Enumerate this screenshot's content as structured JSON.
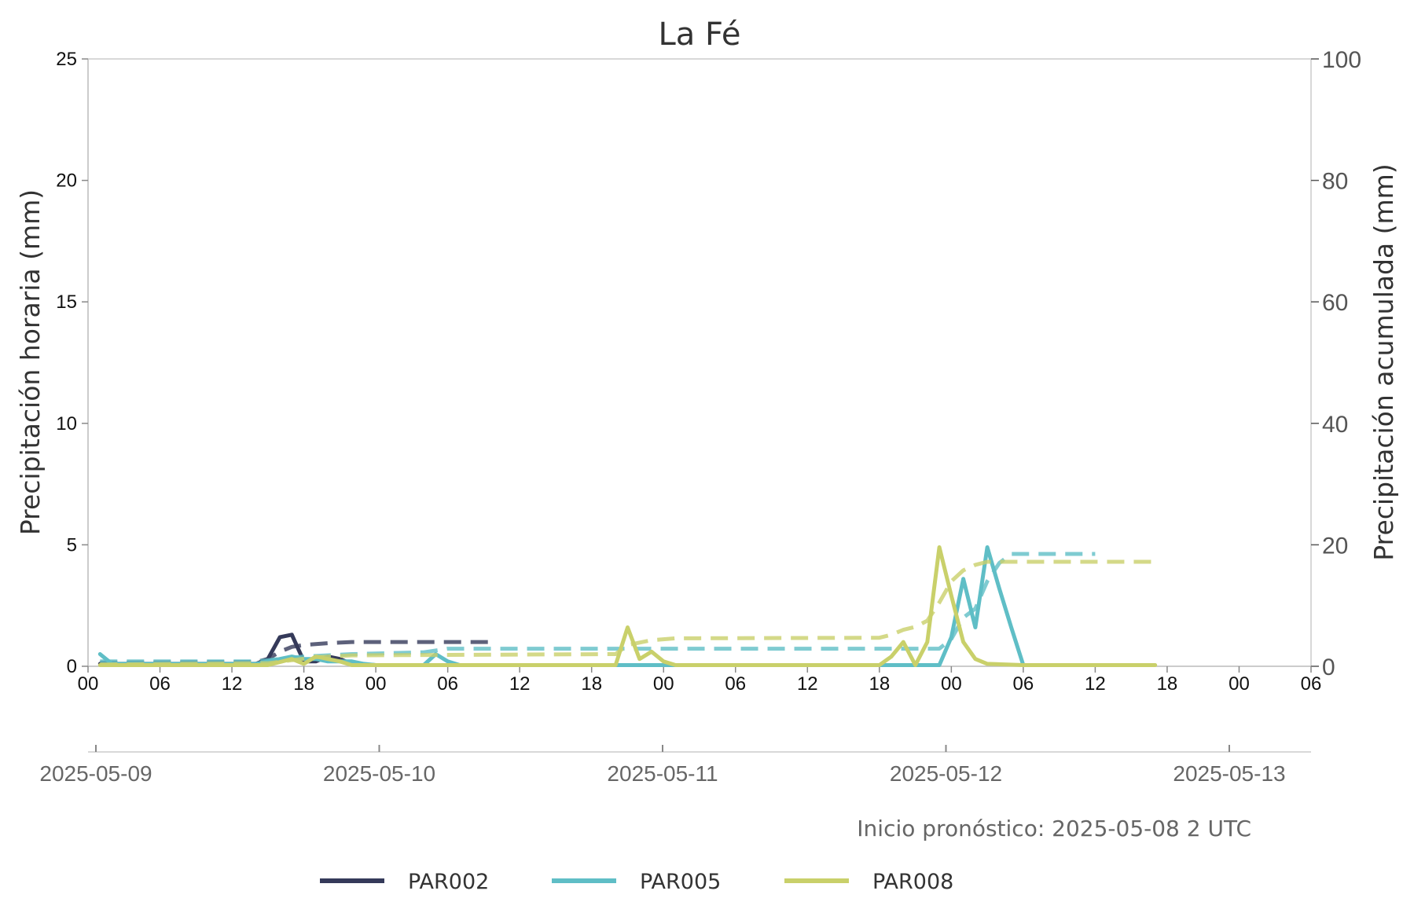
{
  "chart_data": {
    "type": "line",
    "title": "La Fé",
    "ylabel_left": "Precipitación horaria (mm)",
    "ylabel_right": "Precipitación acumulada (mm)",
    "ylim_left": [
      0,
      25
    ],
    "ylim_right": [
      0,
      100
    ],
    "yticks_left": [
      "0",
      "5",
      "10",
      "15",
      "20",
      "25"
    ],
    "yticks_right": [
      "0",
      "20",
      "40",
      "60",
      "80",
      "100"
    ],
    "xlim_hours": [
      0,
      102
    ],
    "hour_ticks": [
      {
        "h": 0,
        "label": "00"
      },
      {
        "h": 6,
        "label": "06"
      },
      {
        "h": 12,
        "label": "12"
      },
      {
        "h": 18,
        "label": "18"
      },
      {
        "h": 24,
        "label": "00"
      },
      {
        "h": 30,
        "label": "06"
      },
      {
        "h": 36,
        "label": "12"
      },
      {
        "h": 42,
        "label": "18"
      },
      {
        "h": 48,
        "label": "00"
      },
      {
        "h": 54,
        "label": "06"
      },
      {
        "h": 60,
        "label": "12"
      },
      {
        "h": 66,
        "label": "18"
      },
      {
        "h": 72,
        "label": "00"
      },
      {
        "h": 78,
        "label": "06"
      },
      {
        "h": 84,
        "label": "12"
      },
      {
        "h": 90,
        "label": "18"
      },
      {
        "h": 96,
        "label": "00"
      },
      {
        "h": 102,
        "label": "06"
      }
    ],
    "date_ticks": [
      "2025-05-09",
      "2025-05-10",
      "2025-05-11",
      "2025-05-12",
      "2025-05-13"
    ],
    "note": "Inicio pronóstico: 2025-05-08 2 UTC",
    "legend_position": "bottom",
    "grid": false,
    "series": [
      {
        "name": "PAR002",
        "color": "#353a5a",
        "hourly": [
          [
            1,
            0.1
          ],
          [
            14,
            0.1
          ],
          [
            15,
            0.3
          ],
          [
            16,
            1.2
          ],
          [
            17,
            1.3
          ],
          [
            18,
            0.2
          ],
          [
            19,
            0.2
          ],
          [
            20,
            0.4
          ],
          [
            21,
            0.3
          ],
          [
            22,
            0.1
          ],
          [
            24,
            0.05
          ],
          [
            28,
            0.05
          ]
        ],
        "cumulative": [
          [
            1,
            0.6
          ],
          [
            14,
            0.7
          ],
          [
            15,
            1.2
          ],
          [
            16,
            2.4
          ],
          [
            17,
            3.2
          ],
          [
            18,
            3.5
          ],
          [
            20,
            3.8
          ],
          [
            22,
            4.0
          ],
          [
            34,
            4.0
          ]
        ]
      },
      {
        "name": "PAR005",
        "color": "#5fbec6",
        "hourly": [
          [
            1,
            0.5
          ],
          [
            2,
            0.1
          ],
          [
            14,
            0.1
          ],
          [
            16,
            0.3
          ],
          [
            17,
            0.4
          ],
          [
            18,
            0.3
          ],
          [
            19,
            0.3
          ],
          [
            20,
            0.2
          ],
          [
            22,
            0.2
          ],
          [
            23,
            0.1
          ],
          [
            24,
            0.05
          ],
          [
            28,
            0.05
          ],
          [
            29,
            0.5
          ],
          [
            30,
            0.2
          ],
          [
            31,
            0.05
          ],
          [
            64,
            0.05
          ],
          [
            70,
            0.05
          ],
          [
            71,
            0.05
          ],
          [
            72,
            1.2
          ],
          [
            73,
            3.6
          ],
          [
            74,
            1.6
          ],
          [
            75,
            4.9
          ],
          [
            76,
            3.2
          ],
          [
            77,
            1.6
          ],
          [
            78,
            0.05
          ],
          [
            84,
            0.05
          ]
        ],
        "cumulative": [
          [
            1,
            0.8
          ],
          [
            14,
            0.8
          ],
          [
            16,
            1.2
          ],
          [
            18,
            1.6
          ],
          [
            22,
            2.0
          ],
          [
            28,
            2.3
          ],
          [
            30,
            2.9
          ],
          [
            48,
            2.9
          ],
          [
            71,
            2.9
          ],
          [
            72,
            4.5
          ],
          [
            73,
            8.0
          ],
          [
            74,
            9.5
          ],
          [
            75,
            14.0
          ],
          [
            76,
            17.0
          ],
          [
            77,
            18.5
          ],
          [
            84,
            18.5
          ]
        ]
      },
      {
        "name": "PAR008",
        "color": "#c9d06a",
        "hourly": [
          [
            1,
            0.05
          ],
          [
            15,
            0.05
          ],
          [
            17,
            0.3
          ],
          [
            18,
            0.1
          ],
          [
            19,
            0.4
          ],
          [
            20,
            0.3
          ],
          [
            21,
            0.2
          ],
          [
            22,
            0.05
          ],
          [
            44,
            0.05
          ],
          [
            45,
            1.6
          ],
          [
            46,
            0.3
          ],
          [
            47,
            0.6
          ],
          [
            48,
            0.2
          ],
          [
            49,
            0.05
          ],
          [
            66,
            0.05
          ],
          [
            67,
            0.4
          ],
          [
            68,
            1.0
          ],
          [
            69,
            0.05
          ],
          [
            70,
            1.0
          ],
          [
            71,
            4.9
          ],
          [
            72,
            2.9
          ],
          [
            73,
            1.0
          ],
          [
            74,
            0.3
          ],
          [
            75,
            0.1
          ],
          [
            78,
            0.05
          ],
          [
            89,
            0.05
          ]
        ],
        "cumulative": [
          [
            1,
            0.3
          ],
          [
            15,
            0.5
          ],
          [
            17,
            1.0
          ],
          [
            19,
            1.5
          ],
          [
            22,
            1.8
          ],
          [
            44,
            2.0
          ],
          [
            45,
            3.5
          ],
          [
            47,
            4.3
          ],
          [
            49,
            4.6
          ],
          [
            66,
            4.7
          ],
          [
            67,
            5.2
          ],
          [
            68,
            6.0
          ],
          [
            69,
            6.5
          ],
          [
            70,
            7.5
          ],
          [
            71,
            10.5
          ],
          [
            72,
            14.0
          ],
          [
            73,
            15.8
          ],
          [
            74,
            16.7
          ],
          [
            75,
            17.2
          ],
          [
            89,
            17.2
          ]
        ]
      }
    ]
  }
}
